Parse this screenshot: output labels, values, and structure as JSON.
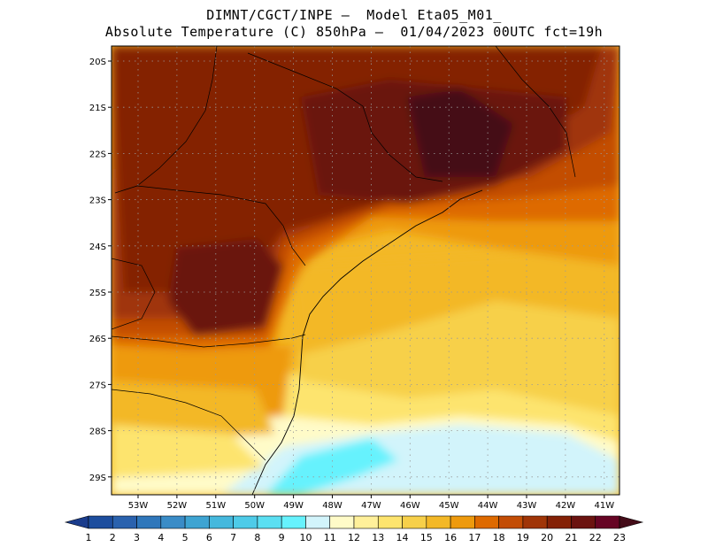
{
  "header": {
    "line1": "DIMNT/CGCT/INPE –  Model Eta05_M01_",
    "line2": "Absolute Temperature (C) 850hPa –  01/04/2023 00UTC fct=19h"
  },
  "map": {
    "region": "Southern and southeastern Brazil, 850hPa temperature field",
    "lat_labels": [
      "20S",
      "21S",
      "22S",
      "23S",
      "24S",
      "25S",
      "26S",
      "27S",
      "28S",
      "29S"
    ],
    "lon_labels": [
      "53W",
      "52W",
      "51W",
      "50W",
      "49W",
      "48W",
      "47W",
      "46W",
      "45W",
      "44W",
      "43W",
      "42W",
      "41W"
    ]
  },
  "colorbar": {
    "labels": [
      "1",
      "2",
      "3",
      "4",
      "5",
      "6",
      "7",
      "8",
      "9",
      "10",
      "11",
      "12",
      "13",
      "14",
      "15",
      "16",
      "17",
      "18",
      "19",
      "20",
      "21",
      "22",
      "23"
    ],
    "colors": [
      "#1a3c8c",
      "#1d4e9e",
      "#2a62ae",
      "#2f77bb",
      "#3a8cc7",
      "#3ea4d2",
      "#45b8dd",
      "#4ecbe8",
      "#5bdff2",
      "#66f2fd",
      "#d2f4fb",
      "#fffbc8",
      "#fff09a",
      "#fde46e",
      "#f7d04a",
      "#f3b827",
      "#ee9a0d",
      "#de6a00",
      "#c34d05",
      "#a03507",
      "#842106",
      "#6b1310",
      "#660424",
      "#440c18"
    ]
  }
}
